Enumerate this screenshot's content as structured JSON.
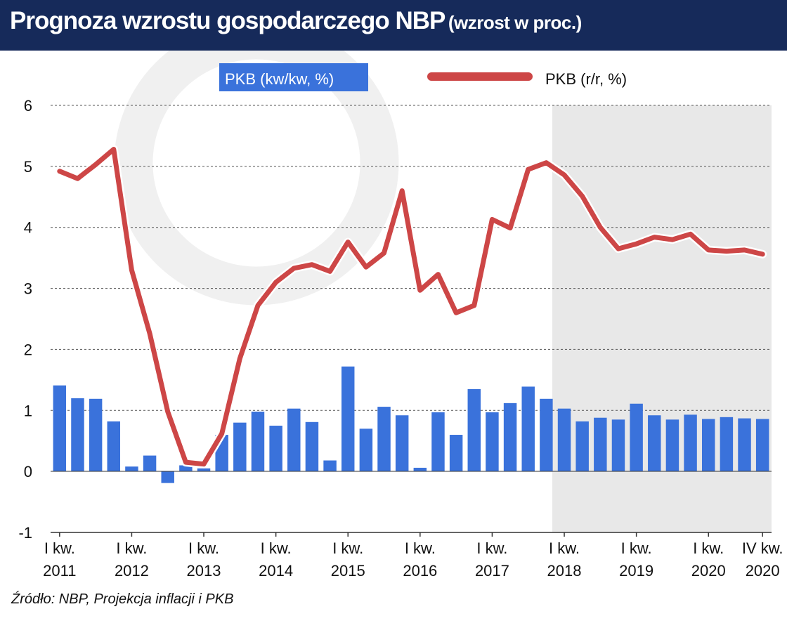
{
  "header": {
    "title": "Prognoza wzrostu gospodarczego NBP",
    "subtitle": "(wzrost w proc.)"
  },
  "source": "Źródło: NBP, Projekcja inflacji i PKB",
  "colors": {
    "header_bg": "#162a5a",
    "bar": "#3a72db",
    "line": "#cd4646",
    "forecast_shade": "#e8e8e8"
  },
  "chart_data": {
    "type": "bar+line",
    "ylim": [
      -1,
      6
    ],
    "yticks": [
      6,
      5,
      4,
      3,
      2,
      1,
      0,
      -1
    ],
    "grid": true,
    "legend": [
      "PKB (kw/kw, %)",
      "PKB (r/r, %)"
    ],
    "xtick_labels": [
      [
        "I kw.",
        "2011"
      ],
      [
        "I kw.",
        "2012"
      ],
      [
        "I kw.",
        "2013"
      ],
      [
        "I kw.",
        "2014"
      ],
      [
        "I kw.",
        "2015"
      ],
      [
        "I kw.",
        "2016"
      ],
      [
        "I kw.",
        "2017"
      ],
      [
        "I kw.",
        "2018"
      ],
      [
        "I kw.",
        "2019"
      ],
      [
        "I kw.",
        "2020"
      ],
      [
        "IV kw.",
        "2020"
      ]
    ],
    "forecast_start_index": 28,
    "series": [
      {
        "name": "PKB (kw/kw, %)",
        "type": "bar",
        "values": [
          1.41,
          1.2,
          1.19,
          0.82,
          0.08,
          0.26,
          -0.19,
          0.1,
          0.05,
          0.6,
          0.8,
          0.98,
          0.75,
          1.03,
          0.81,
          0.18,
          1.72,
          0.7,
          1.06,
          0.92,
          0.06,
          0.97,
          0.6,
          1.35,
          0.97,
          1.12,
          1.39,
          1.19,
          1.03,
          0.82,
          0.88,
          0.85,
          1.11,
          0.92,
          0.85,
          0.93,
          0.86,
          0.89,
          0.87,
          0.86
        ]
      },
      {
        "name": "PKB (r/r, %)",
        "type": "line",
        "values": [
          4.92,
          4.8,
          5.03,
          5.28,
          3.3,
          2.26,
          0.98,
          0.15,
          0.12,
          0.62,
          1.85,
          2.72,
          3.1,
          3.33,
          3.39,
          3.28,
          3.76,
          3.35,
          3.58,
          4.6,
          2.97,
          3.23,
          2.6,
          2.72,
          4.13,
          3.99,
          4.95,
          5.06,
          4.86,
          4.51,
          4.0,
          3.65,
          3.73,
          3.84,
          3.8,
          3.89,
          3.63,
          3.61,
          3.63,
          3.56
        ]
      }
    ]
  }
}
